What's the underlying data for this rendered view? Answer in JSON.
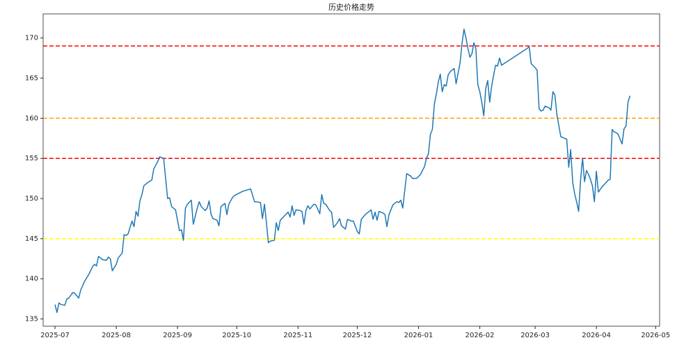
{
  "chart_data": {
    "type": "line",
    "title": "历史价格走势",
    "x": [
      0,
      1,
      2,
      3,
      5,
      6,
      7,
      9,
      10,
      12,
      13,
      15,
      17,
      19,
      20,
      21,
      22,
      24,
      26,
      27,
      28,
      29,
      31,
      32,
      34,
      35,
      36,
      37,
      38,
      39,
      40,
      41,
      42,
      43,
      44,
      45,
      47,
      49,
      50,
      52,
      53,
      55,
      57,
      58,
      59,
      60,
      61,
      63,
      64,
      65,
      66,
      67,
      69,
      70,
      72,
      73,
      74,
      76,
      77,
      78,
      79,
      80,
      82,
      83,
      84,
      86,
      87,
      88,
      90,
      91,
      95,
      99,
      101,
      102,
      104,
      105,
      106,
      107,
      108,
      109,
      111,
      112,
      113,
      114,
      116,
      118,
      119,
      120,
      121,
      122,
      124,
      125,
      126,
      127,
      128,
      129,
      131,
      132,
      134,
      135,
      136,
      137,
      139,
      140,
      141,
      143,
      144,
      145,
      147,
      148,
      150,
      151,
      153,
      154,
      155,
      157,
      160,
      161,
      162,
      163,
      164,
      166,
      167,
      168,
      169,
      170,
      171,
      173,
      174,
      175,
      176,
      177,
      178,
      180,
      181,
      183,
      185,
      187,
      188,
      189,
      190,
      191,
      192,
      193,
      194,
      195,
      196,
      197,
      198,
      199,
      200,
      202,
      203,
      205,
      206,
      207,
      208,
      209,
      210,
      211,
      212,
      213,
      214,
      215,
      216,
      217,
      218,
      219,
      220,
      221,
      222,
      223,
      224,
      225,
      226,
      239,
      240,
      241,
      243,
      244,
      245,
      246,
      247,
      248,
      250,
      251,
      252,
      253,
      254,
      256,
      258,
      259,
      260,
      261,
      262,
      263,
      264,
      265,
      266,
      267,
      268,
      269,
      270,
      271,
      272,
      273,
      274,
      275,
      277,
      279,
      280,
      281,
      282,
      283,
      284,
      285,
      286,
      287,
      288,
      289,
      290,
      291
    ],
    "series": [
      {
        "color": "#1f77b4",
        "values": [
          136.8,
          135.8,
          137.0,
          136.8,
          136.7,
          137.5,
          137.6,
          138.3,
          138.2,
          137.6,
          138.6,
          139.7,
          140.5,
          141.5,
          141.8,
          141.6,
          142.8,
          142.4,
          142.3,
          142.7,
          142.5,
          141.0,
          141.8,
          142.6,
          143.2,
          145.5,
          145.4,
          145.6,
          146.4,
          147.2,
          146.5,
          148.4,
          147.8,
          149.7,
          150.5,
          151.6,
          152.0,
          152.3,
          153.7,
          154.6,
          155.2,
          155.0,
          150.0,
          150.1,
          149.0,
          148.8,
          148.6,
          146.0,
          146.1,
          144.8,
          148.8,
          149.3,
          149.8,
          146.8,
          148.8,
          149.6,
          149.0,
          148.5,
          148.8,
          149.7,
          148.0,
          147.5,
          147.3,
          146.6,
          149.0,
          149.4,
          148.0,
          149.3,
          150.2,
          150.4,
          150.9,
          151.2,
          149.6,
          149.6,
          149.5,
          147.5,
          149.3,
          147.0,
          144.5,
          144.7,
          144.8,
          147.0,
          146.0,
          147.3,
          147.8,
          148.3,
          147.7,
          149.1,
          147.9,
          148.6,
          148.5,
          148.4,
          146.8,
          148.5,
          149.1,
          148.7,
          149.3,
          149.2,
          148.1,
          150.5,
          149.4,
          149.3,
          148.5,
          148.3,
          146.4,
          147.0,
          147.5,
          146.6,
          146.2,
          147.4,
          147.2,
          147.2,
          145.9,
          145.6,
          147.4,
          148.0,
          148.6,
          147.4,
          148.3,
          147.3,
          148.4,
          148.2,
          148.0,
          146.5,
          148.0,
          148.6,
          149.2,
          149.6,
          149.5,
          149.8,
          148.8,
          151.0,
          153.1,
          152.8,
          152.5,
          152.5,
          153.0,
          154.0,
          155.0,
          155.6,
          158.0,
          158.6,
          161.8,
          163.0,
          164.5,
          165.5,
          163.3,
          164.2,
          164.0,
          165.4,
          165.8,
          166.2,
          164.3,
          166.9,
          169.3,
          171.1,
          170.0,
          168.7,
          167.6,
          168.0,
          169.4,
          168.7,
          164.2,
          163.3,
          162.0,
          160.3,
          163.7,
          164.7,
          162.0,
          164.0,
          165.4,
          166.6,
          166.5,
          167.5,
          166.6,
          168.7,
          168.9,
          166.8,
          166.3,
          166.0,
          161.2,
          160.9,
          161.0,
          161.5,
          161.3,
          161.0,
          163.3,
          162.9,
          160.5,
          157.7,
          157.5,
          157.4,
          153.9,
          156.1,
          152.0,
          150.6,
          149.6,
          148.4,
          152.3,
          155.0,
          152.1,
          153.5,
          153.0,
          152.4,
          151.6,
          149.6,
          153.4,
          150.8,
          151.5,
          152.0,
          152.3,
          152.4,
          158.6,
          158.3,
          158.2,
          158.0,
          157.4,
          156.8,
          158.7,
          159.0,
          162.0,
          162.8
        ]
      }
    ],
    "hlines": [
      {
        "y": 169,
        "color": "red"
      },
      {
        "y": 160,
        "color": "orange"
      },
      {
        "y": 155,
        "color": "red"
      },
      {
        "y": 145,
        "color": "yellow"
      }
    ],
    "xlim": [
      -6,
      306
    ],
    "ylim": [
      134.1,
      173.0
    ],
    "xticks": [
      {
        "value": 0,
        "label": "2025-07"
      },
      {
        "value": 31,
        "label": "2025-08"
      },
      {
        "value": 62,
        "label": "2025-09"
      },
      {
        "value": 92,
        "label": "2025-10"
      },
      {
        "value": 123,
        "label": "2025-11"
      },
      {
        "value": 153,
        "label": "2025-12"
      },
      {
        "value": 184,
        "label": "2026-01"
      },
      {
        "value": 215,
        "label": "2026-02"
      },
      {
        "value": 243,
        "label": "2026-03"
      },
      {
        "value": 274,
        "label": "2026-04"
      },
      {
        "value": 304,
        "label": "2026-05"
      }
    ],
    "yticks": [
      135,
      140,
      145,
      150,
      155,
      160,
      165,
      170
    ]
  }
}
